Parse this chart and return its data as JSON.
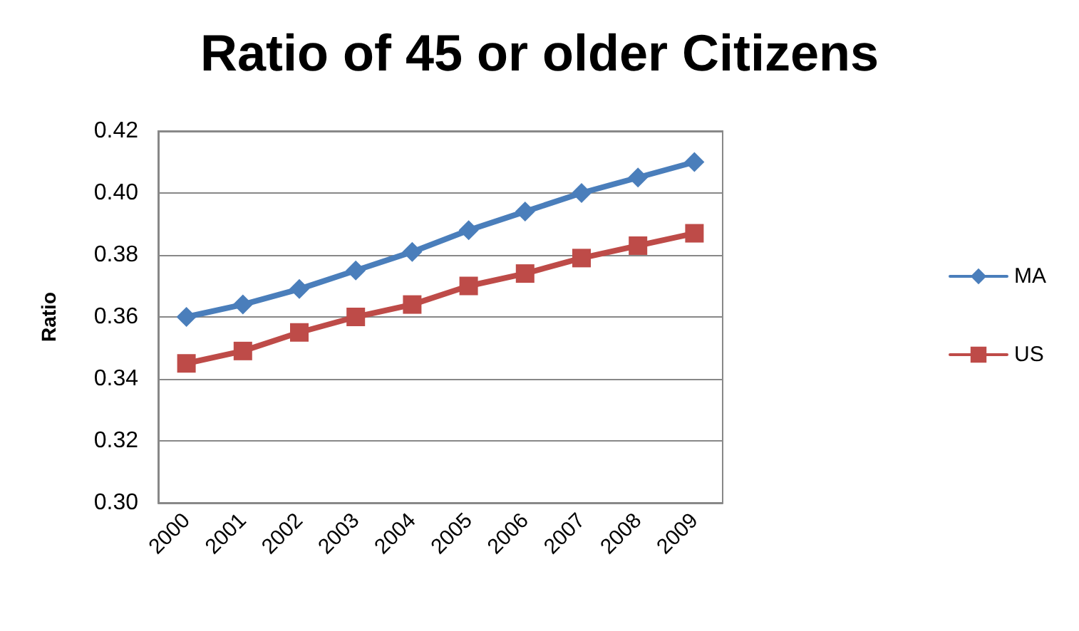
{
  "chart_data": {
    "type": "line",
    "title": "Ratio of 45 or older Citizens",
    "ylabel": "Ratio",
    "categories": [
      "2000",
      "2001",
      "2002",
      "2003",
      "2004",
      "2005",
      "2006",
      "2007",
      "2008",
      "2009"
    ],
    "series": [
      {
        "name": "MA",
        "color": "#4a7ebb",
        "marker": "diamond",
        "values": [
          0.36,
          0.364,
          0.369,
          0.375,
          0.381,
          0.388,
          0.394,
          0.4,
          0.405,
          0.41
        ]
      },
      {
        "name": "US",
        "color": "#be4b48",
        "marker": "square",
        "values": [
          0.345,
          0.349,
          0.355,
          0.36,
          0.364,
          0.37,
          0.374,
          0.379,
          0.383,
          0.387
        ]
      }
    ],
    "ylim": [
      0.3,
      0.42
    ],
    "yticks": [
      {
        "value": 0.3,
        "label": "0.30"
      },
      0.32,
      0.34,
      0.36,
      0.38,
      {
        "value": 0.4,
        "label": "0.40"
      },
      0.42
    ],
    "grid": "y",
    "legend": "right",
    "line_style": "solid"
  }
}
